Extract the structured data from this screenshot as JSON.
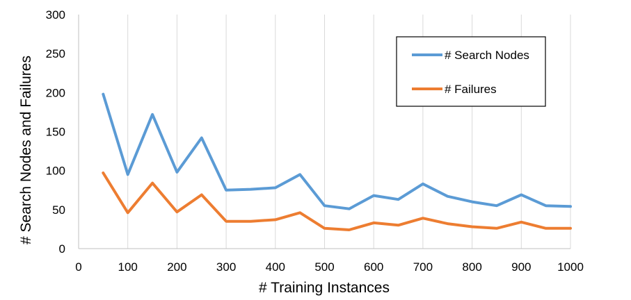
{
  "chart_data": {
    "type": "line",
    "title": "",
    "xlabel": "# Training Instances",
    "ylabel": "# Search Nodes and Failures",
    "xlim": [
      0,
      1000
    ],
    "ylim": [
      0,
      300
    ],
    "xticks": [
      0,
      100,
      200,
      300,
      400,
      500,
      600,
      700,
      800,
      900,
      1000
    ],
    "yticks": [
      0,
      50,
      100,
      150,
      200,
      250,
      300
    ],
    "grid": "vertical",
    "legend_position": "top-right",
    "x": [
      50,
      100,
      150,
      200,
      250,
      300,
      350,
      400,
      450,
      500,
      550,
      600,
      650,
      700,
      750,
      800,
      850,
      900,
      950,
      1000
    ],
    "series": [
      {
        "name": "# Search Nodes",
        "color": "#5B9BD5",
        "values": [
          198,
          95,
          172,
          98,
          142,
          75,
          76,
          78,
          95,
          55,
          51,
          68,
          63,
          83,
          67,
          60,
          55,
          69,
          55,
          54
        ]
      },
      {
        "name": "# Failures",
        "color": "#ED7D31",
        "values": [
          97,
          46,
          84,
          47,
          69,
          35,
          35,
          37,
          46,
          26,
          24,
          33,
          30,
          39,
          32,
          28,
          26,
          34,
          26,
          26
        ]
      }
    ]
  }
}
